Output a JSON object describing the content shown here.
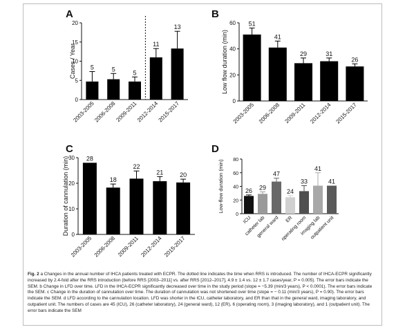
{
  "panels": [
    {
      "label": "A",
      "ylabel": "Cases / Year",
      "ylim": [
        0,
        20
      ],
      "yticks": [
        0,
        5,
        10,
        15,
        20
      ],
      "categories": [
        "2003-2005",
        "2006-2008",
        "2009-2011",
        "2012-2014",
        "2015-2017"
      ],
      "values": [
        4.7,
        5.3,
        4.7,
        11,
        13.3
      ],
      "errors": [
        2.6,
        1.5,
        1.2,
        2.3,
        4.5
      ],
      "labels": [
        "5",
        "5",
        "5",
        "11",
        "13"
      ],
      "divider_after_index": 2
    },
    {
      "label": "B",
      "ylabel": "Low flow duration (min)",
      "ylim": [
        0,
        60
      ],
      "yticks": [
        0,
        20,
        40,
        60
      ],
      "categories": [
        "2003-2005",
        "2006-2008",
        "2009-2011",
        "2012-2014",
        "2015-2017"
      ],
      "values": [
        51,
        41,
        29,
        30.5,
        26.5
      ],
      "errors": [
        5,
        5,
        4,
        2.5,
        2
      ],
      "labels": [
        "51",
        "41",
        "29",
        "31",
        "26"
      ]
    },
    {
      "label": "C",
      "ylabel": "Duration of cannulation (min)",
      "ylim": [
        0,
        30
      ],
      "yticks": [
        0,
        10,
        20,
        30
      ],
      "categories": [
        "2003-2005",
        "2006-2008",
        "2009-2011",
        "2012-2014",
        "2015-2017"
      ],
      "values": [
        28,
        18.3,
        21.8,
        20.8,
        20.3
      ],
      "errors": [
        0,
        1.4,
        3,
        1.8,
        1.3
      ],
      "labels": [
        "28",
        "18",
        "22",
        "21",
        "20"
      ]
    },
    {
      "label": "D",
      "ylabel": "Low-flow duration (min)",
      "ylim": [
        0,
        80
      ],
      "yticks": [
        0,
        20,
        40,
        60,
        80
      ],
      "categories": [
        "ICU",
        "catheter lab",
        "general ward",
        "ER",
        "operating room",
        "imaging lab",
        "outpatient unit"
      ],
      "values": [
        26,
        29,
        47,
        24,
        33,
        41,
        41
      ],
      "errors": [
        1.5,
        3,
        5,
        2.5,
        8,
        19,
        0
      ],
      "labels": [
        "26",
        "29",
        "47",
        "24",
        "33",
        "41",
        "41"
      ],
      "colors": [
        "#111111",
        "#9a9a9a",
        "#686868",
        "#d0d0d0",
        "#505050",
        "#a8a8a8",
        "#5a5a5a"
      ]
    }
  ],
  "caption": {
    "lead": "Fig. 2",
    "text": " a Changes in the annual number of IHCA patients treated with ECPR. The dotted line indicates the time when RRS is introduced. The number of IHCA-ECPR significantly increased by 2.4-fold after the RRS introduction (before RRS [2003–2011] vs. after RRS [2012–2017], 4.9 ± 1.4 vs. 12 ± 1.7 cases/year, P = 0.005). The error bars indicate the SEM. b Change in LFD over time. LFD in the IHCA-ECPR significantly decreased over time in the study period (slope = −5.39 (min/3 years), P < 0.0001). The error bars indicate the SEM. c Change in the duration of cannulation over time. The duration of cannulation was not shortened over time (slope = − 0.11 (min/3 years), P = 0.90). The error bars indicate the SEM. d LFD according to the cannulation location. LFD was shorter in the ICU, catheter laboratory, and ER than that in the general ward, imaging laboratory, and outpatient unit. The numbers of cases are 45 (ICU), 26 (catheter laboratory), 24 (general ward), 12 (ER), 6 (operating room), 3 (imaging laboratory), and 1 (outpatient unit). The error bars indicate the SEM"
  }
}
